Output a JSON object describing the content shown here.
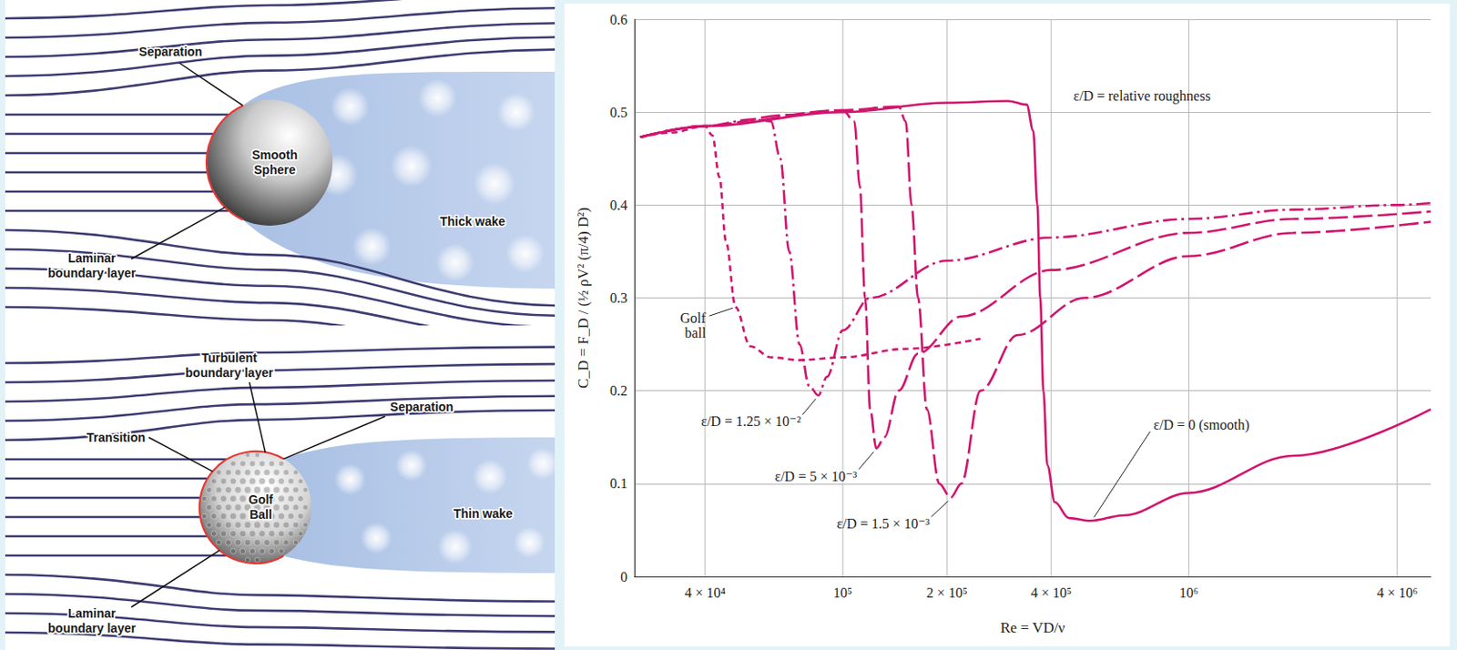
{
  "chart_data": {
    "type": "line",
    "x_label": "Re = VD/ν",
    "y_label": "C_D = F_D / (½ ρV² (π/4) D²)",
    "annotations": [
      "ε/D = relative roughness"
    ],
    "log": "x",
    "grid": true,
    "xlim": [
      25000,
      5000000
    ],
    "ylim": [
      0,
      0.6
    ],
    "xticks": [
      {
        "value": 40000,
        "label": "4 × 10⁴"
      },
      {
        "value": 100000,
        "label": "10⁵"
      },
      {
        "value": 200000,
        "label": "2 × 10⁵"
      },
      {
        "value": 400000,
        "label": "4 × 10⁵"
      },
      {
        "value": 1000000,
        "label": "10⁶"
      },
      {
        "value": 4000000,
        "label": "4 × 10⁶"
      }
    ],
    "yticks": [
      0,
      0.1,
      0.2,
      0.3,
      0.4,
      0.5,
      0.6
    ],
    "series": [
      {
        "name": "Golf ball",
        "color": "#d1156e",
        "line_style": "dashed",
        "x": [
          26000,
          32000,
          40000,
          42000,
          44000,
          46000,
          49000,
          54000,
          62000,
          75000,
          100000,
          150000,
          250000
        ],
        "values": [
          0.473,
          0.478,
          0.485,
          0.475,
          0.43,
          0.36,
          0.29,
          0.248,
          0.236,
          0.233,
          0.236,
          0.245,
          0.256
        ]
      },
      {
        "name": "ε/D = 1.25 × 10⁻²",
        "color": "#d1156e",
        "line_style": "dashdot",
        "x": [
          26000,
          40000,
          55000,
          62000,
          66000,
          70000,
          75000,
          80000,
          85000,
          90000,
          100000,
          120000,
          200000,
          400000,
          1000000,
          2000000,
          4000000,
          5000000
        ],
        "values": [
          0.473,
          0.485,
          0.492,
          0.49,
          0.45,
          0.35,
          0.25,
          0.205,
          0.195,
          0.215,
          0.265,
          0.3,
          0.34,
          0.365,
          0.385,
          0.395,
          0.4,
          0.402
        ]
      },
      {
        "name": "ε/D = 5 × 10⁻³",
        "color": "#d1156e",
        "line_style": "longdash",
        "x": [
          26000,
          40000,
          70000,
          100000,
          108000,
          112000,
          116000,
          120000,
          125000,
          132000,
          145000,
          165000,
          220000,
          400000,
          1000000,
          2000000,
          5000000
        ],
        "values": [
          0.473,
          0.485,
          0.497,
          0.502,
          0.49,
          0.42,
          0.3,
          0.18,
          0.138,
          0.15,
          0.2,
          0.24,
          0.28,
          0.33,
          0.37,
          0.385,
          0.393
        ]
      },
      {
        "name": "ε/D = 1.5 × 10⁻³",
        "color": "#d1156e",
        "line_style": "longdash",
        "x": [
          26000,
          40000,
          100000,
          145000,
          152000,
          158000,
          165000,
          175000,
          190000,
          205000,
          220000,
          250000,
          320000,
          500000,
          1000000,
          2000000,
          5000000
        ],
        "values": [
          0.473,
          0.485,
          0.502,
          0.506,
          0.49,
          0.4,
          0.3,
          0.18,
          0.1,
          0.085,
          0.1,
          0.2,
          0.26,
          0.3,
          0.345,
          0.37,
          0.382
        ]
      },
      {
        "name": "ε/D = 0 (smooth)",
        "color": "#d1156e",
        "line_style": "solid",
        "x": [
          26000,
          40000,
          100000,
          200000,
          300000,
          340000,
          355000,
          365000,
          372000,
          380000,
          390000,
          410000,
          450000,
          520000,
          650000,
          1000000,
          2000000,
          5000000
        ],
        "values": [
          0.473,
          0.485,
          0.5,
          0.51,
          0.512,
          0.508,
          0.48,
          0.4,
          0.3,
          0.2,
          0.12,
          0.08,
          0.063,
          0.06,
          0.066,
          0.09,
          0.13,
          0.18
        ]
      }
    ]
  },
  "diagram": {
    "smooth_sphere": {
      "separation": "Separation",
      "body": "Smooth Sphere",
      "boundary_layer": "Laminar boundary layer",
      "wake": "Thick wake"
    },
    "golf_ball": {
      "turbulent": "Turbulent boundary layer",
      "transition": "Transition",
      "separation": "Separation",
      "body": "Golf Ball",
      "boundary_layer": "Laminar boundary layer",
      "wake": "Thin wake"
    }
  }
}
